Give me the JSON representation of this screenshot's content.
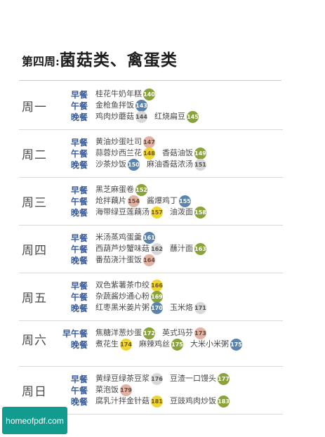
{
  "title": {
    "small": "第四周:",
    "big": "菌菇类、禽蛋类"
  },
  "days": [
    {
      "label": "周一",
      "meals": [
        {
          "type": "早餐",
          "dishes": [
            {
              "name": "桂花牛奶年糕",
              "page": "140",
              "color": "olive"
            }
          ]
        },
        {
          "type": "午餐",
          "dishes": [
            {
              "name": "金枪鱼拌饭",
              "page": "143",
              "color": "steel"
            }
          ]
        },
        {
          "type": "晚餐",
          "dishes": [
            {
              "name": "鸡肉炒蘑菇",
              "page": "144",
              "color": "gray"
            },
            {
              "name": "红烧扁豆",
              "page": "145",
              "color": "olive"
            }
          ]
        }
      ]
    },
    {
      "label": "周二",
      "meals": [
        {
          "type": "早餐",
          "dishes": [
            {
              "name": "黄油炒蛋吐司",
              "page": "147",
              "color": "pink"
            }
          ]
        },
        {
          "type": "午餐",
          "dishes": [
            {
              "name": "蒜蓉炒西兰花",
              "page": "148",
              "color": "yellow"
            },
            {
              "name": "香菇油饭",
              "page": "149",
              "color": "olive"
            }
          ]
        },
        {
          "type": "晚餐",
          "dishes": [
            {
              "name": "沙茶炒饭",
              "page": "150",
              "color": "steel"
            },
            {
              "name": "麻油香菇浓汤",
              "page": "151",
              "color": "gray"
            }
          ]
        }
      ]
    },
    {
      "label": "周三",
      "meals": [
        {
          "type": "早餐",
          "dishes": [
            {
              "name": "黑芝麻蛋卷",
              "page": "152",
              "color": "olive"
            }
          ]
        },
        {
          "type": "午餐",
          "dishes": [
            {
              "name": "炝拌藕片",
              "page": "154",
              "color": "pink"
            },
            {
              "name": "酱爆鸡丁",
              "page": "155",
              "color": "steel"
            }
          ]
        },
        {
          "type": "晚餐",
          "dishes": [
            {
              "name": "海带绿豆莲藕汤",
              "page": "157",
              "color": "yellow"
            },
            {
              "name": "油泼面",
              "page": "158",
              "color": "olive"
            }
          ]
        }
      ]
    },
    {
      "label": "周四",
      "meals": [
        {
          "type": "早餐",
          "dishes": [
            {
              "name": "米汤蒸鸡蛋羹",
              "page": "161",
              "color": "steel"
            }
          ]
        },
        {
          "type": "午餐",
          "dishes": [
            {
              "name": "西葫芦炒蟹味菇",
              "page": "162",
              "color": "gray"
            },
            {
              "name": "蘸汁面",
              "page": "163",
              "color": "olive"
            }
          ]
        },
        {
          "type": "晚餐",
          "dishes": [
            {
              "name": "番茄浇汁蛋饭",
              "page": "164",
              "color": "pink"
            }
          ]
        }
      ]
    },
    {
      "label": "周五",
      "meals": [
        {
          "type": "早餐",
          "dishes": [
            {
              "name": "双色紫薯茶巾绞",
              "page": "166",
              "color": "yellow"
            }
          ]
        },
        {
          "type": "午餐",
          "dishes": [
            {
              "name": "杂蔬酱炒通心粉",
              "page": "169",
              "color": "olive"
            }
          ]
        },
        {
          "type": "晚餐",
          "dishes": [
            {
              "name": "红枣黑米姜片粥",
              "page": "170",
              "color": "steel"
            },
            {
              "name": "玉米烙",
              "page": "171",
              "color": "gray"
            }
          ]
        }
      ]
    },
    {
      "label": "周六",
      "meals": [
        {
          "type": "早午餐",
          "dishes": [
            {
              "name": "焦糖洋葱炒蛋",
              "page": "172",
              "color": "olive"
            },
            {
              "name": "英式玛芬",
              "page": "173",
              "color": "pink"
            }
          ]
        },
        {
          "type": "晚餐",
          "dishes": [
            {
              "name": "煮花生",
              "page": "174",
              "color": "yellow"
            },
            {
              "name": "麻辣鸡丝",
              "page": "175",
              "color": "olive"
            },
            {
              "name": "大米小米粥",
              "page": "175",
              "color": "steel"
            }
          ]
        }
      ]
    },
    {
      "label": "周日",
      "meals": [
        {
          "type": "早餐",
          "dishes": [
            {
              "name": "黄绿豆绿茶豆浆",
              "page": "176",
              "color": "gray"
            },
            {
              "name": "豆渣一口馒头",
              "page": "177",
              "color": "olive"
            }
          ]
        },
        {
          "type": "午餐",
          "dishes": [
            {
              "name": "菜泡饭",
              "page": "179",
              "color": "pink"
            }
          ]
        },
        {
          "type": "晚餐",
          "dishes": [
            {
              "name": "腐乳汁拌金针菇",
              "page": "181",
              "color": "yellow"
            },
            {
              "name": "豆豉鸡肉炒饭",
              "page": "183",
              "color": "olive"
            }
          ]
        }
      ]
    }
  ],
  "watermark": "homeofpdf.com"
}
